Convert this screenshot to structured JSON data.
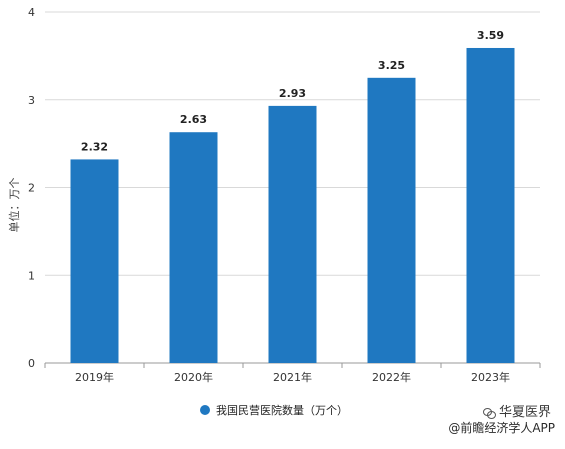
{
  "chart_data": {
    "type": "bar",
    "categories": [
      "2019年",
      "2020年",
      "2021年",
      "2022年",
      "2023年"
    ],
    "series": [
      {
        "name": "我国民营医院数量（万个）",
        "values": [
          2.32,
          2.63,
          2.93,
          3.25,
          3.59
        ]
      }
    ],
    "data_labels": [
      "2.32",
      "2.63",
      "2.93",
      "3.25",
      "3.59"
    ],
    "ylabel": "单位：万个",
    "xlabel": "",
    "ylim": [
      0,
      4
    ],
    "yticks": [
      0,
      1,
      2,
      3,
      4
    ],
    "grid": true,
    "legend_position": "bottom",
    "bar_color": "#1f78c1",
    "grid_color": "#d9d9d9"
  },
  "watermark": {
    "line1": "华夏医界",
    "line2": "@前瞻经济学人APP"
  }
}
